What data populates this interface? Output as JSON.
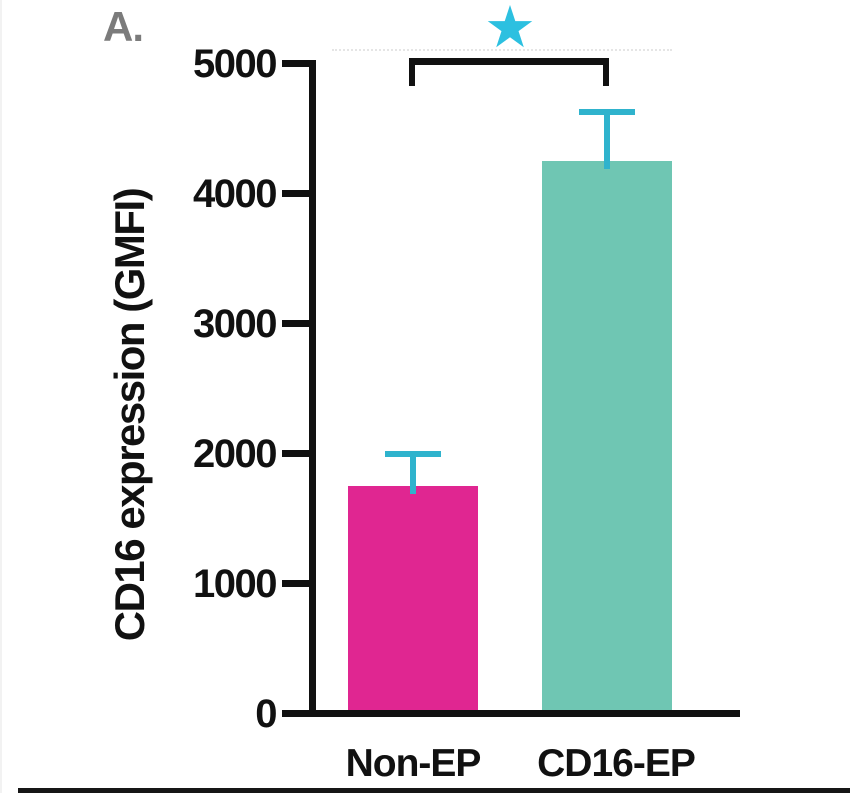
{
  "panel": {
    "label": "A."
  },
  "chart_data": {
    "type": "bar",
    "title": "",
    "xlabel": "",
    "ylabel": "CD16 expression (GMFI)",
    "categories": [
      "Non-EP",
      "CD16-EP"
    ],
    "values": [
      1750,
      4250
    ],
    "error_upper": [
      250,
      380
    ],
    "ylim": [
      0,
      5000
    ],
    "yticks": [
      0,
      1000,
      2000,
      3000,
      4000,
      5000
    ],
    "bar_colors": [
      "#e02691",
      "#6fc6b3"
    ],
    "error_bar_color": "#2fb3cd",
    "axis_color": "#111111",
    "grid": "off",
    "legend": "none",
    "significance": {
      "symbol": "★",
      "color": "#2cc0e0"
    }
  }
}
